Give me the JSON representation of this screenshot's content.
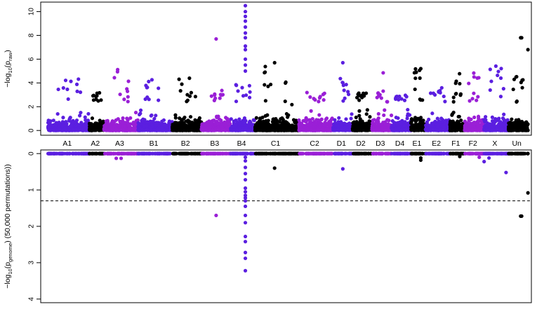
{
  "chart_data": [
    {
      "type": "scatter",
      "title": "",
      "ylabel_prefix": "−log",
      "ylabel_sub": "10",
      "ylabel_mid": "(p",
      "ylabel_psub": "raw",
      "ylabel_suffix": ")",
      "ylim": [
        -0.4,
        10.8
      ],
      "yticks": [
        0,
        2,
        4,
        6,
        8,
        10
      ],
      "grid": false,
      "colors": [
        "#5b1fe0",
        "#000000",
        "#9a1fd6"
      ],
      "chromosomes": [
        {
          "label": "A1",
          "start": 0.0,
          "end": 8.5,
          "color": "#5b1fe0",
          "peak": 4.4
        },
        {
          "label": "A2",
          "start": 8.5,
          "end": 11.5,
          "color": "#000000",
          "peak": 3.2
        },
        {
          "label": "A3",
          "start": 11.5,
          "end": 18.5,
          "color": "#9a1fd6",
          "peak": 5.2
        },
        {
          "label": "B1",
          "start": 18.5,
          "end": 25.5,
          "color": "#5b1fe0",
          "peak": 4.6
        },
        {
          "label": "B2",
          "start": 25.5,
          "end": 31.5,
          "color": "#000000",
          "peak": 4.5
        },
        {
          "label": "B3",
          "start": 31.5,
          "end": 37.5,
          "color": "#9a1fd6",
          "peak": 3.4
        },
        {
          "label": "B4",
          "start": 37.5,
          "end": 42.5,
          "color": "#5b1fe0",
          "peak": 4.0
        },
        {
          "label": "C1",
          "start": 42.5,
          "end": 51.5,
          "color": "#000000",
          "peak": 5.7
        },
        {
          "label": "C2",
          "start": 51.5,
          "end": 58.5,
          "color": "#9a1fd6",
          "peak": 3.2
        },
        {
          "label": "D1",
          "start": 58.5,
          "end": 62.5,
          "color": "#5b1fe0",
          "peak": 4.4
        },
        {
          "label": "D2",
          "start": 62.5,
          "end": 66.5,
          "color": "#000000",
          "peak": 3.2
        },
        {
          "label": "D3",
          "start": 66.5,
          "end": 70.5,
          "color": "#9a1fd6",
          "peak": 5.0
        },
        {
          "label": "D4",
          "start": 70.5,
          "end": 74.5,
          "color": "#5b1fe0",
          "peak": 3.0
        },
        {
          "label": "E1",
          "start": 74.5,
          "end": 77.5,
          "color": "#000000",
          "peak": 5.3
        },
        {
          "label": "E2",
          "start": 77.5,
          "end": 82.5,
          "color": "#5b1fe0",
          "peak": 3.6
        },
        {
          "label": "F1",
          "start": 82.5,
          "end": 85.5,
          "color": "#000000",
          "peak": 4.8
        },
        {
          "label": "F2",
          "start": 85.5,
          "end": 89.5,
          "color": "#9a1fd6",
          "peak": 5.0
        },
        {
          "label": "X",
          "start": 89.5,
          "end": 94.5,
          "color": "#5b1fe0",
          "peak": 5.9
        },
        {
          "label": "Un",
          "start": 94.5,
          "end": 98.5,
          "color": "#000000",
          "peak": 4.8
        }
      ],
      "highlight_points": [
        {
          "x": 40.5,
          "y": 10.5
        },
        {
          "x": 40.5,
          "y": 10.0
        },
        {
          "x": 40.5,
          "y": 9.6
        },
        {
          "x": 40.5,
          "y": 9.2
        },
        {
          "x": 40.5,
          "y": 8.7
        },
        {
          "x": 40.5,
          "y": 8.2
        },
        {
          "x": 40.5,
          "y": 7.8
        },
        {
          "x": 40.5,
          "y": 7.1
        },
        {
          "x": 40.5,
          "y": 6.8
        },
        {
          "x": 40.5,
          "y": 6.0
        },
        {
          "x": 40.5,
          "y": 5.5
        },
        {
          "x": 40.5,
          "y": 5.0
        },
        {
          "x": 34.5,
          "y": 7.7
        },
        {
          "x": 97.0,
          "y": 7.8
        },
        {
          "x": 97.2,
          "y": 7.8
        },
        {
          "x": 98.5,
          "y": 6.8
        },
        {
          "x": 46.5,
          "y": 5.7
        },
        {
          "x": 60.5,
          "y": 5.7
        },
        {
          "x": 76.5,
          "y": 5.2
        }
      ]
    },
    {
      "type": "scatter",
      "title": "",
      "ylabel_prefix": "−log",
      "ylabel_sub": "10",
      "ylabel_mid": "(p",
      "ylabel_psub": "genome",
      "ylabel_suffix": ") (50,000 permutations))",
      "ylim_reversed": [
        0,
        4.1
      ],
      "yticks": [
        0,
        1,
        2,
        3,
        4
      ],
      "threshold": 1.3,
      "threshold_style": "dashed",
      "points": [
        {
          "x": 40.5,
          "y": 3.22
        },
        {
          "x": 40.5,
          "y": 2.88
        },
        {
          "x": 40.5,
          "y": 2.72
        },
        {
          "x": 40.5,
          "y": 2.42
        },
        {
          "x": 40.5,
          "y": 2.28
        },
        {
          "x": 40.5,
          "y": 1.9
        },
        {
          "x": 40.5,
          "y": 1.7
        },
        {
          "x": 40.5,
          "y": 1.45
        },
        {
          "x": 40.5,
          "y": 1.3
        },
        {
          "x": 40.5,
          "y": 1.22
        },
        {
          "x": 40.5,
          "y": 1.15
        },
        {
          "x": 40.5,
          "y": 1.05
        },
        {
          "x": 40.5,
          "y": 0.95
        },
        {
          "x": 40.5,
          "y": 0.72
        },
        {
          "x": 40.5,
          "y": 0.55
        },
        {
          "x": 40.5,
          "y": 0.38
        },
        {
          "x": 40.5,
          "y": 0.2
        },
        {
          "x": 40.5,
          "y": 0.1
        },
        {
          "x": 34.5,
          "y": 1.7
        },
        {
          "x": 97.0,
          "y": 1.72
        },
        {
          "x": 97.2,
          "y": 1.72
        },
        {
          "x": 98.5,
          "y": 1.08
        },
        {
          "x": 46.5,
          "y": 0.4
        },
        {
          "x": 60.5,
          "y": 0.42
        },
        {
          "x": 94.0,
          "y": 0.52
        },
        {
          "x": 89.5,
          "y": 0.22
        },
        {
          "x": 76.5,
          "y": 0.12
        },
        {
          "x": 76.5,
          "y": 0.18
        },
        {
          "x": 14.0,
          "y": 0.13
        },
        {
          "x": 15.0,
          "y": 0.13
        },
        {
          "x": 90.5,
          "y": 0.12
        },
        {
          "x": 88.5,
          "y": 0.1
        },
        {
          "x": 84.5,
          "y": 0.08
        }
      ]
    }
  ]
}
